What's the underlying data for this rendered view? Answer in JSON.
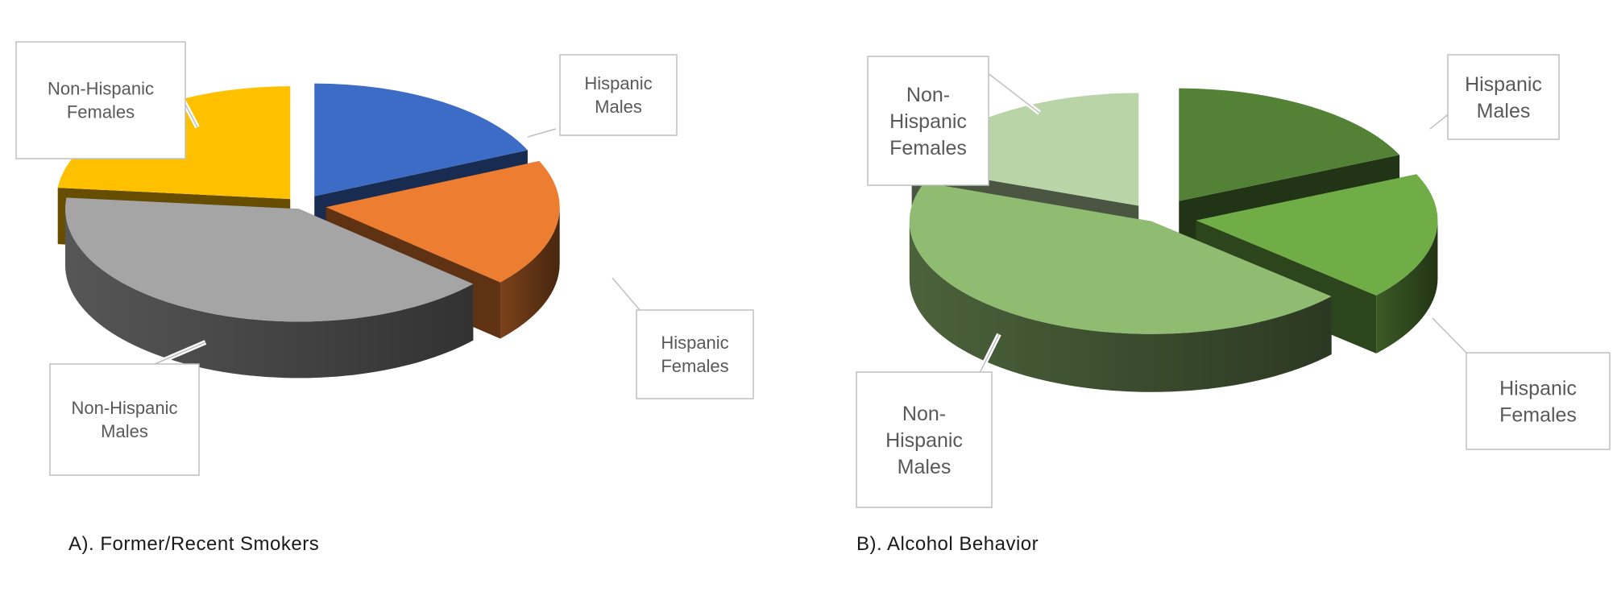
{
  "chart_data": [
    {
      "type": "pie",
      "title": "A). Former/Recent Smokers",
      "categories": [
        "Hispanic Males",
        "Hispanic Females",
        "Non-Hispanic Males",
        "Non-Hispanic Females"
      ],
      "values": [
        18.3,
        18.3,
        40,
        23.4
      ],
      "colors": [
        "#3d6cc7",
        "#ed7d31",
        "#a5a5a5",
        "#ffc000"
      ],
      "labels": [
        [
          "Hispanic",
          "Males"
        ],
        [
          "Hispanic",
          "Females"
        ],
        [
          "Non-Hispanic",
          "Males"
        ],
        [
          "Non-Hispanic",
          "Females"
        ]
      ],
      "style": "3d-exploded"
    },
    {
      "type": "pie",
      "title": "B). Alcohol Behavior",
      "categories": [
        "Hispanic Males",
        "Hispanic Females",
        "Non-Hispanic Males",
        "Non-Hispanic Females"
      ],
      "values": [
        18.3,
        18.3,
        44,
        19.4
      ],
      "colors": [
        "#538135",
        "#70ad47",
        "#8fbc71",
        "#b9d4a6"
      ],
      "labels": [
        [
          "Hispanic",
          "Males"
        ],
        [
          "Hispanic",
          "Females"
        ],
        [
          "Non-",
          "Hispanic",
          "Males"
        ],
        [
          "Non-",
          "Hispanic",
          "Females"
        ]
      ],
      "style": "3d-exploded"
    }
  ]
}
